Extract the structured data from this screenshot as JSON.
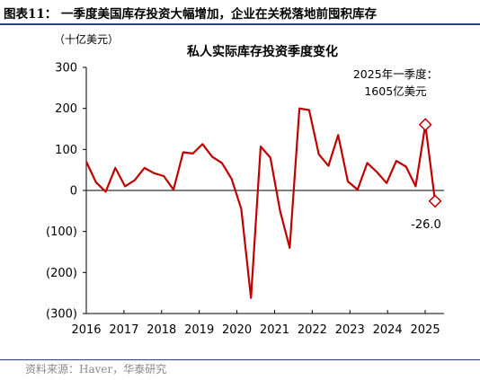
{
  "caption": "图表11：  一季度美国库存投资大幅增加，企业在关税落地前囤积库存",
  "source": "资料来源：Haver，华泰研究",
  "chart_data": {
    "type": "line",
    "title": "私人实际库存投资季度变化",
    "ylabel": "（十亿美元）",
    "ylim": [
      -300,
      300
    ],
    "yticks": [
      300,
      200,
      100,
      0,
      -100,
      -200,
      -300
    ],
    "ytick_labels": [
      "300",
      "200",
      "100",
      "0",
      "(100)",
      "(200)",
      "(300)"
    ],
    "xticks": [
      2016,
      2017,
      2018,
      2019,
      2020,
      2021,
      2022,
      2023,
      2024,
      2025
    ],
    "grid": false,
    "series": [
      {
        "values": [
          70,
          20,
          -3,
          55,
          10,
          25,
          55,
          42,
          35,
          2,
          93,
          90,
          113,
          82,
          67,
          28,
          -45,
          -262,
          107,
          80,
          -50,
          -140,
          200,
          196,
          88,
          60,
          135,
          22,
          2,
          67,
          45,
          18,
          72,
          58,
          10,
          160,
          -26
        ]
      }
    ],
    "annotation": {
      "text_line1": "2025年一季度：",
      "text_line2": "1605亿美元",
      "value": 160.5
    },
    "last_label": "-26.0",
    "last_value": -26
  }
}
